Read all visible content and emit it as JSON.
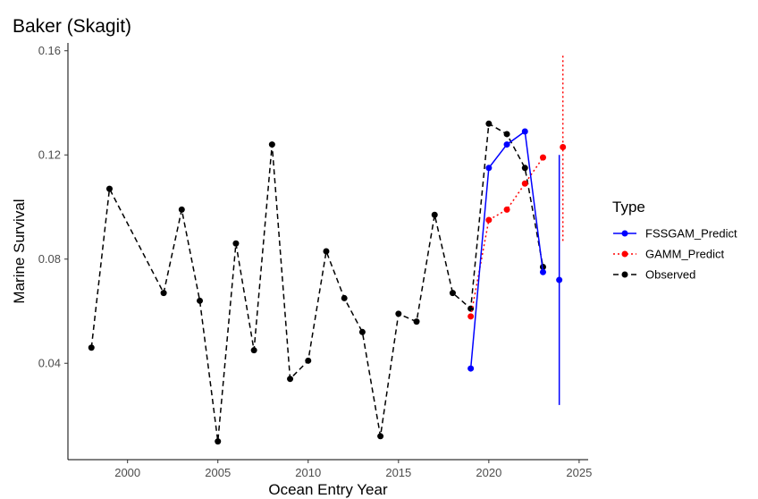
{
  "chart_data": {
    "type": "line",
    "title": "Baker (Skagit)",
    "xlabel": "Ocean Entry Year",
    "ylabel": "Marine Survival",
    "xlim": [
      1996.7,
      2025.5
    ],
    "ylim": [
      0.003,
      0.163
    ],
    "x_ticks": [
      2000,
      2005,
      2010,
      2015,
      2020,
      2025
    ],
    "x_tick_labels": [
      "2000",
      "2005",
      "2010",
      "2015",
      "2020",
      "2025"
    ],
    "y_ticks": [
      0.04,
      0.08,
      0.12,
      0.16
    ],
    "y_tick_labels": [
      "0.04",
      "0.08",
      "0.12",
      "0.16"
    ],
    "grid": false,
    "legend": {
      "title": "Type",
      "position": "right",
      "entries": [
        "FSSGAM_Predict",
        "GAMM_Predict",
        "Observed"
      ]
    },
    "series": [
      {
        "name": "Observed",
        "color": "#000000",
        "line_style": "dashed",
        "points": [
          [
            1998,
            0.046
          ],
          [
            1999,
            0.107
          ],
          [
            2002,
            0.067
          ],
          [
            2003,
            0.099
          ],
          [
            2004,
            0.064
          ],
          [
            2005,
            0.01
          ],
          [
            2006,
            0.086
          ],
          [
            2007,
            0.045
          ],
          [
            2008,
            0.124
          ],
          [
            2009,
            0.034
          ],
          [
            2010,
            0.041
          ],
          [
            2011,
            0.083
          ],
          [
            2012,
            0.065
          ],
          [
            2013,
            0.052
          ],
          [
            2014,
            0.012
          ],
          [
            2015,
            0.059
          ],
          [
            2016,
            0.056
          ],
          [
            2017,
            0.097
          ],
          [
            2018,
            0.067
          ],
          [
            2019,
            0.061
          ],
          [
            2020,
            0.132
          ],
          [
            2021,
            0.128
          ],
          [
            2022,
            0.115
          ],
          [
            2023,
            0.077
          ]
        ]
      },
      {
        "name": "FSSGAM_Predict",
        "color": "#0000ff",
        "line_style": "solid",
        "points": [
          [
            2019,
            0.038
          ],
          [
            2020,
            0.115
          ],
          [
            2021,
            0.124
          ],
          [
            2022,
            0.129
          ],
          [
            2023,
            0.075
          ]
        ],
        "forecast": {
          "x": 2023.9,
          "y": 0.072,
          "lower": 0.024,
          "upper": 0.12
        }
      },
      {
        "name": "GAMM_Predict",
        "color": "#ff0000",
        "line_style": "dotted",
        "points": [
          [
            2019,
            0.058
          ],
          [
            2020,
            0.095
          ],
          [
            2021,
            0.099
          ],
          [
            2022,
            0.109
          ],
          [
            2023,
            0.119
          ]
        ],
        "forecast": {
          "x": 2024.1,
          "y": 0.123,
          "lower": 0.087,
          "upper": 0.159
        }
      }
    ]
  }
}
